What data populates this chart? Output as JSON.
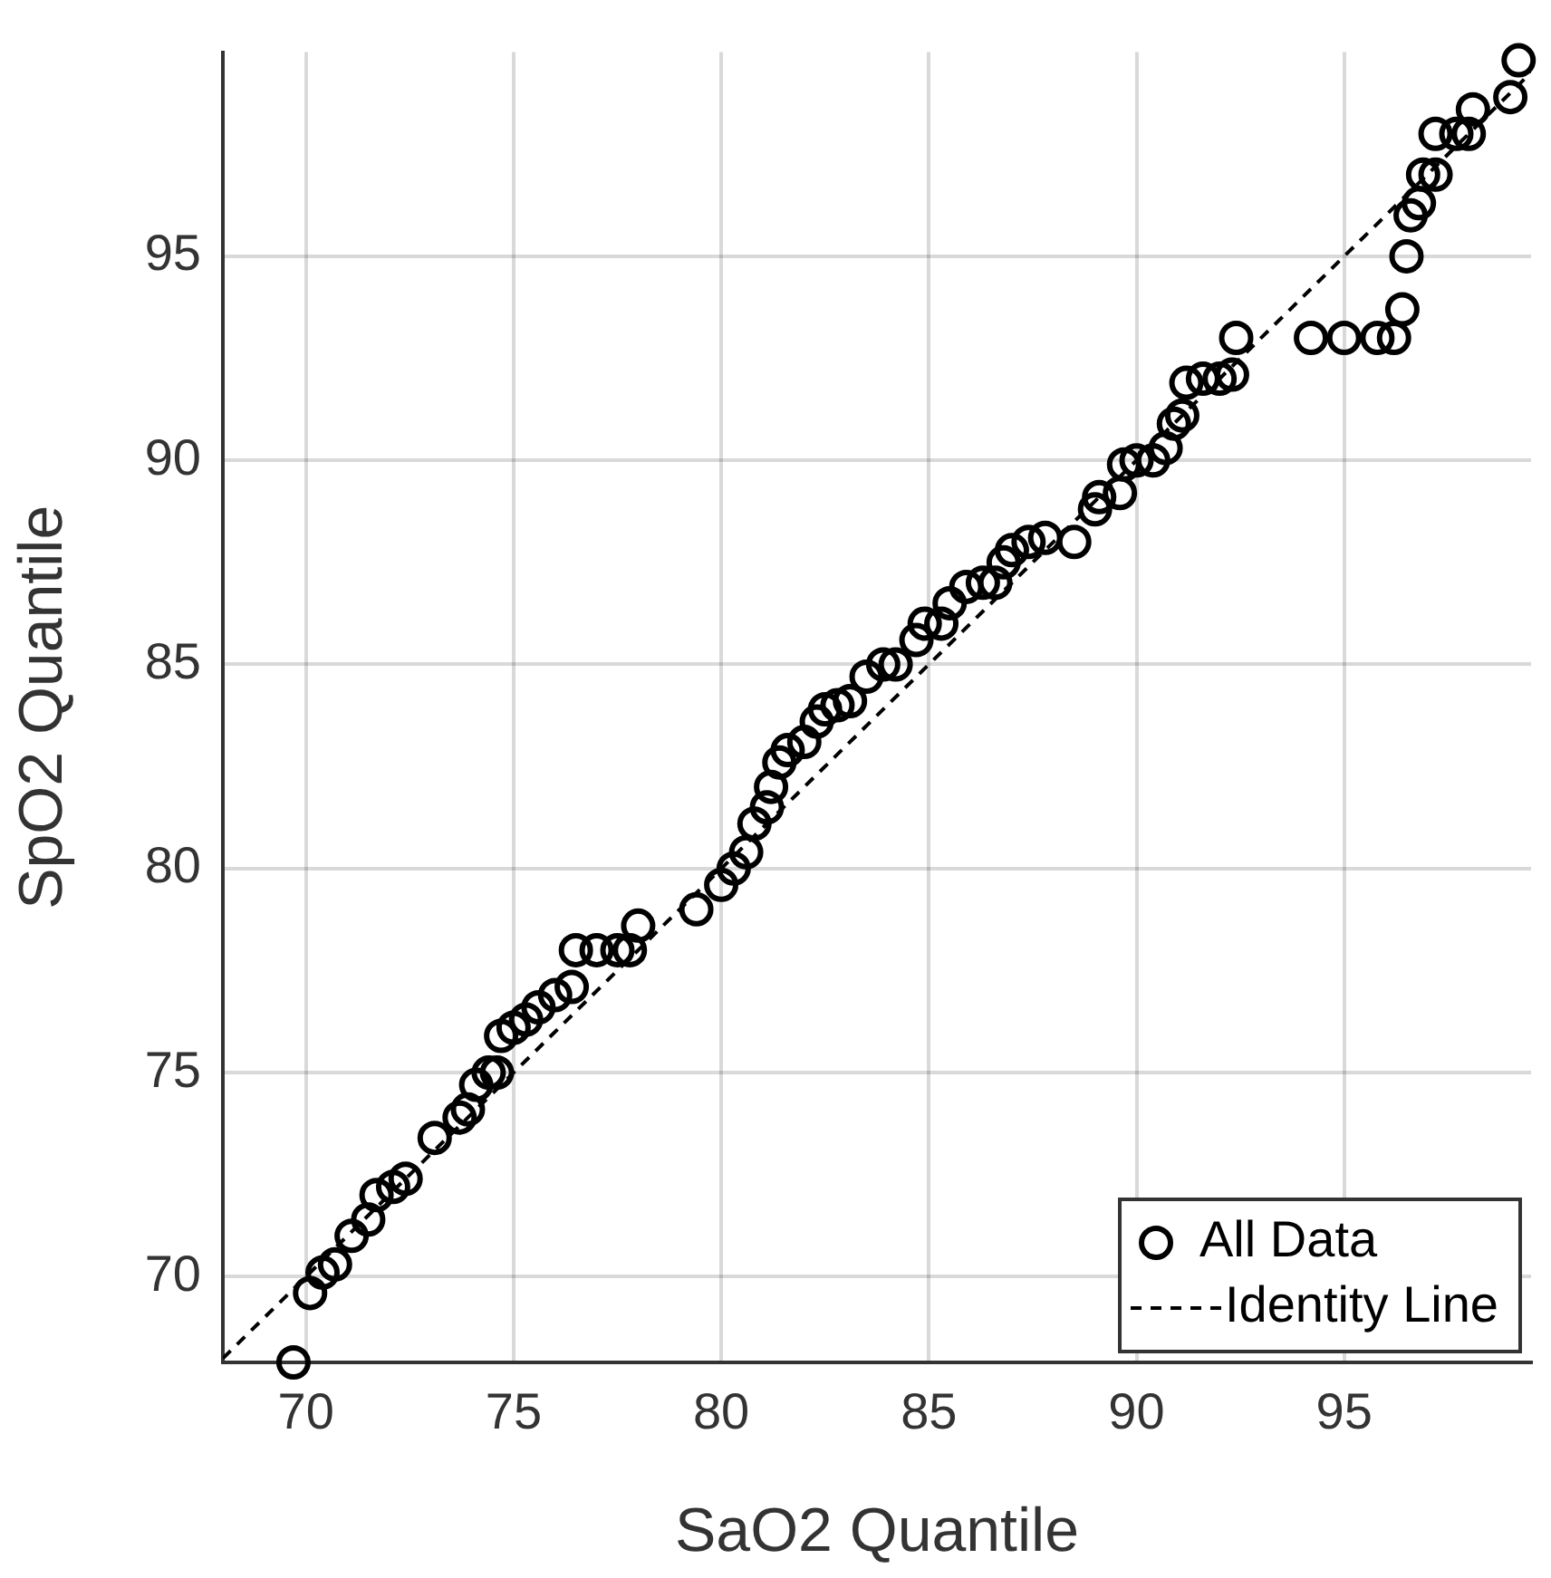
{
  "chart_data": {
    "type": "scatter",
    "xlabel": "SaO2 Quantile",
    "ylabel": "SpO2 Quantile",
    "xlim": [
      68,
      99.5
    ],
    "ylim": [
      67.9,
      100
    ],
    "xticks": [
      70,
      75,
      80,
      85,
      90,
      95
    ],
    "yticks": [
      70,
      75,
      80,
      85,
      90,
      95
    ],
    "grid": true,
    "legend": "bottom right",
    "series": [
      {
        "name": "All Data",
        "type": "scatter",
        "marker": "circle",
        "color": "#000000",
        "x": [
          69.7,
          70.1,
          70.4,
          70.7,
          71.1,
          71.5,
          71.7,
          72.1,
          72.4,
          73.1,
          73.7,
          73.9,
          74.1,
          74.4,
          74.6,
          74.7,
          75.0,
          75.3,
          75.6,
          76.0,
          76.4,
          76.5,
          77.0,
          77.5,
          77.8,
          78.0,
          79.4,
          80.0,
          80.3,
          80.6,
          80.8,
          81.1,
          81.2,
          81.4,
          81.6,
          82.0,
          82.3,
          82.5,
          82.8,
          83.1,
          83.5,
          83.9,
          84.2,
          84.7,
          84.9,
          85.3,
          85.5,
          85.9,
          86.3,
          86.6,
          86.8,
          87.0,
          87.4,
          87.8,
          88.5,
          89.0,
          89.1,
          89.6,
          89.7,
          90.0,
          90.4,
          90.7,
          90.9,
          91.1,
          91.2,
          91.6,
          92.0,
          92.3,
          92.4,
          94.2,
          95.0,
          95.8,
          96.2,
          96.4,
          96.5,
          96.6,
          96.8,
          96.9,
          97.2,
          97.2,
          97.7,
          98.0,
          98.1,
          99.0,
          99.2
        ],
        "values": [
          67.9,
          69.6,
          70.1,
          70.3,
          71.0,
          71.4,
          72.0,
          72.2,
          72.4,
          73.4,
          73.9,
          74.1,
          74.7,
          75.0,
          75.0,
          75.9,
          76.1,
          76.3,
          76.6,
          76.9,
          77.1,
          78.0,
          78.0,
          78.0,
          78.0,
          78.6,
          79.0,
          79.6,
          80.0,
          80.4,
          81.1,
          81.5,
          82.0,
          82.6,
          82.9,
          83.1,
          83.6,
          83.9,
          84.0,
          84.1,
          84.7,
          85.0,
          85.0,
          85.6,
          86.0,
          86.0,
          86.5,
          86.9,
          87.0,
          87.0,
          87.5,
          87.8,
          88.0,
          88.1,
          88.0,
          88.8,
          89.1,
          89.2,
          89.9,
          90.0,
          90.0,
          90.3,
          90.9,
          91.1,
          91.9,
          92.0,
          92.0,
          92.1,
          93.0,
          93.0,
          93.0,
          93.0,
          93.0,
          93.7,
          95.0,
          96.0,
          96.3,
          97.0,
          97.0,
          98.0,
          98.0,
          98.0,
          98.6,
          98.9,
          99.8
        ]
      },
      {
        "name": "Identity Line",
        "type": "line",
        "color": "#000000",
        "line_style": "dashed",
        "marker": "none",
        "x": [
          68,
          99.5
        ],
        "values": [
          68,
          99.5
        ]
      }
    ]
  }
}
